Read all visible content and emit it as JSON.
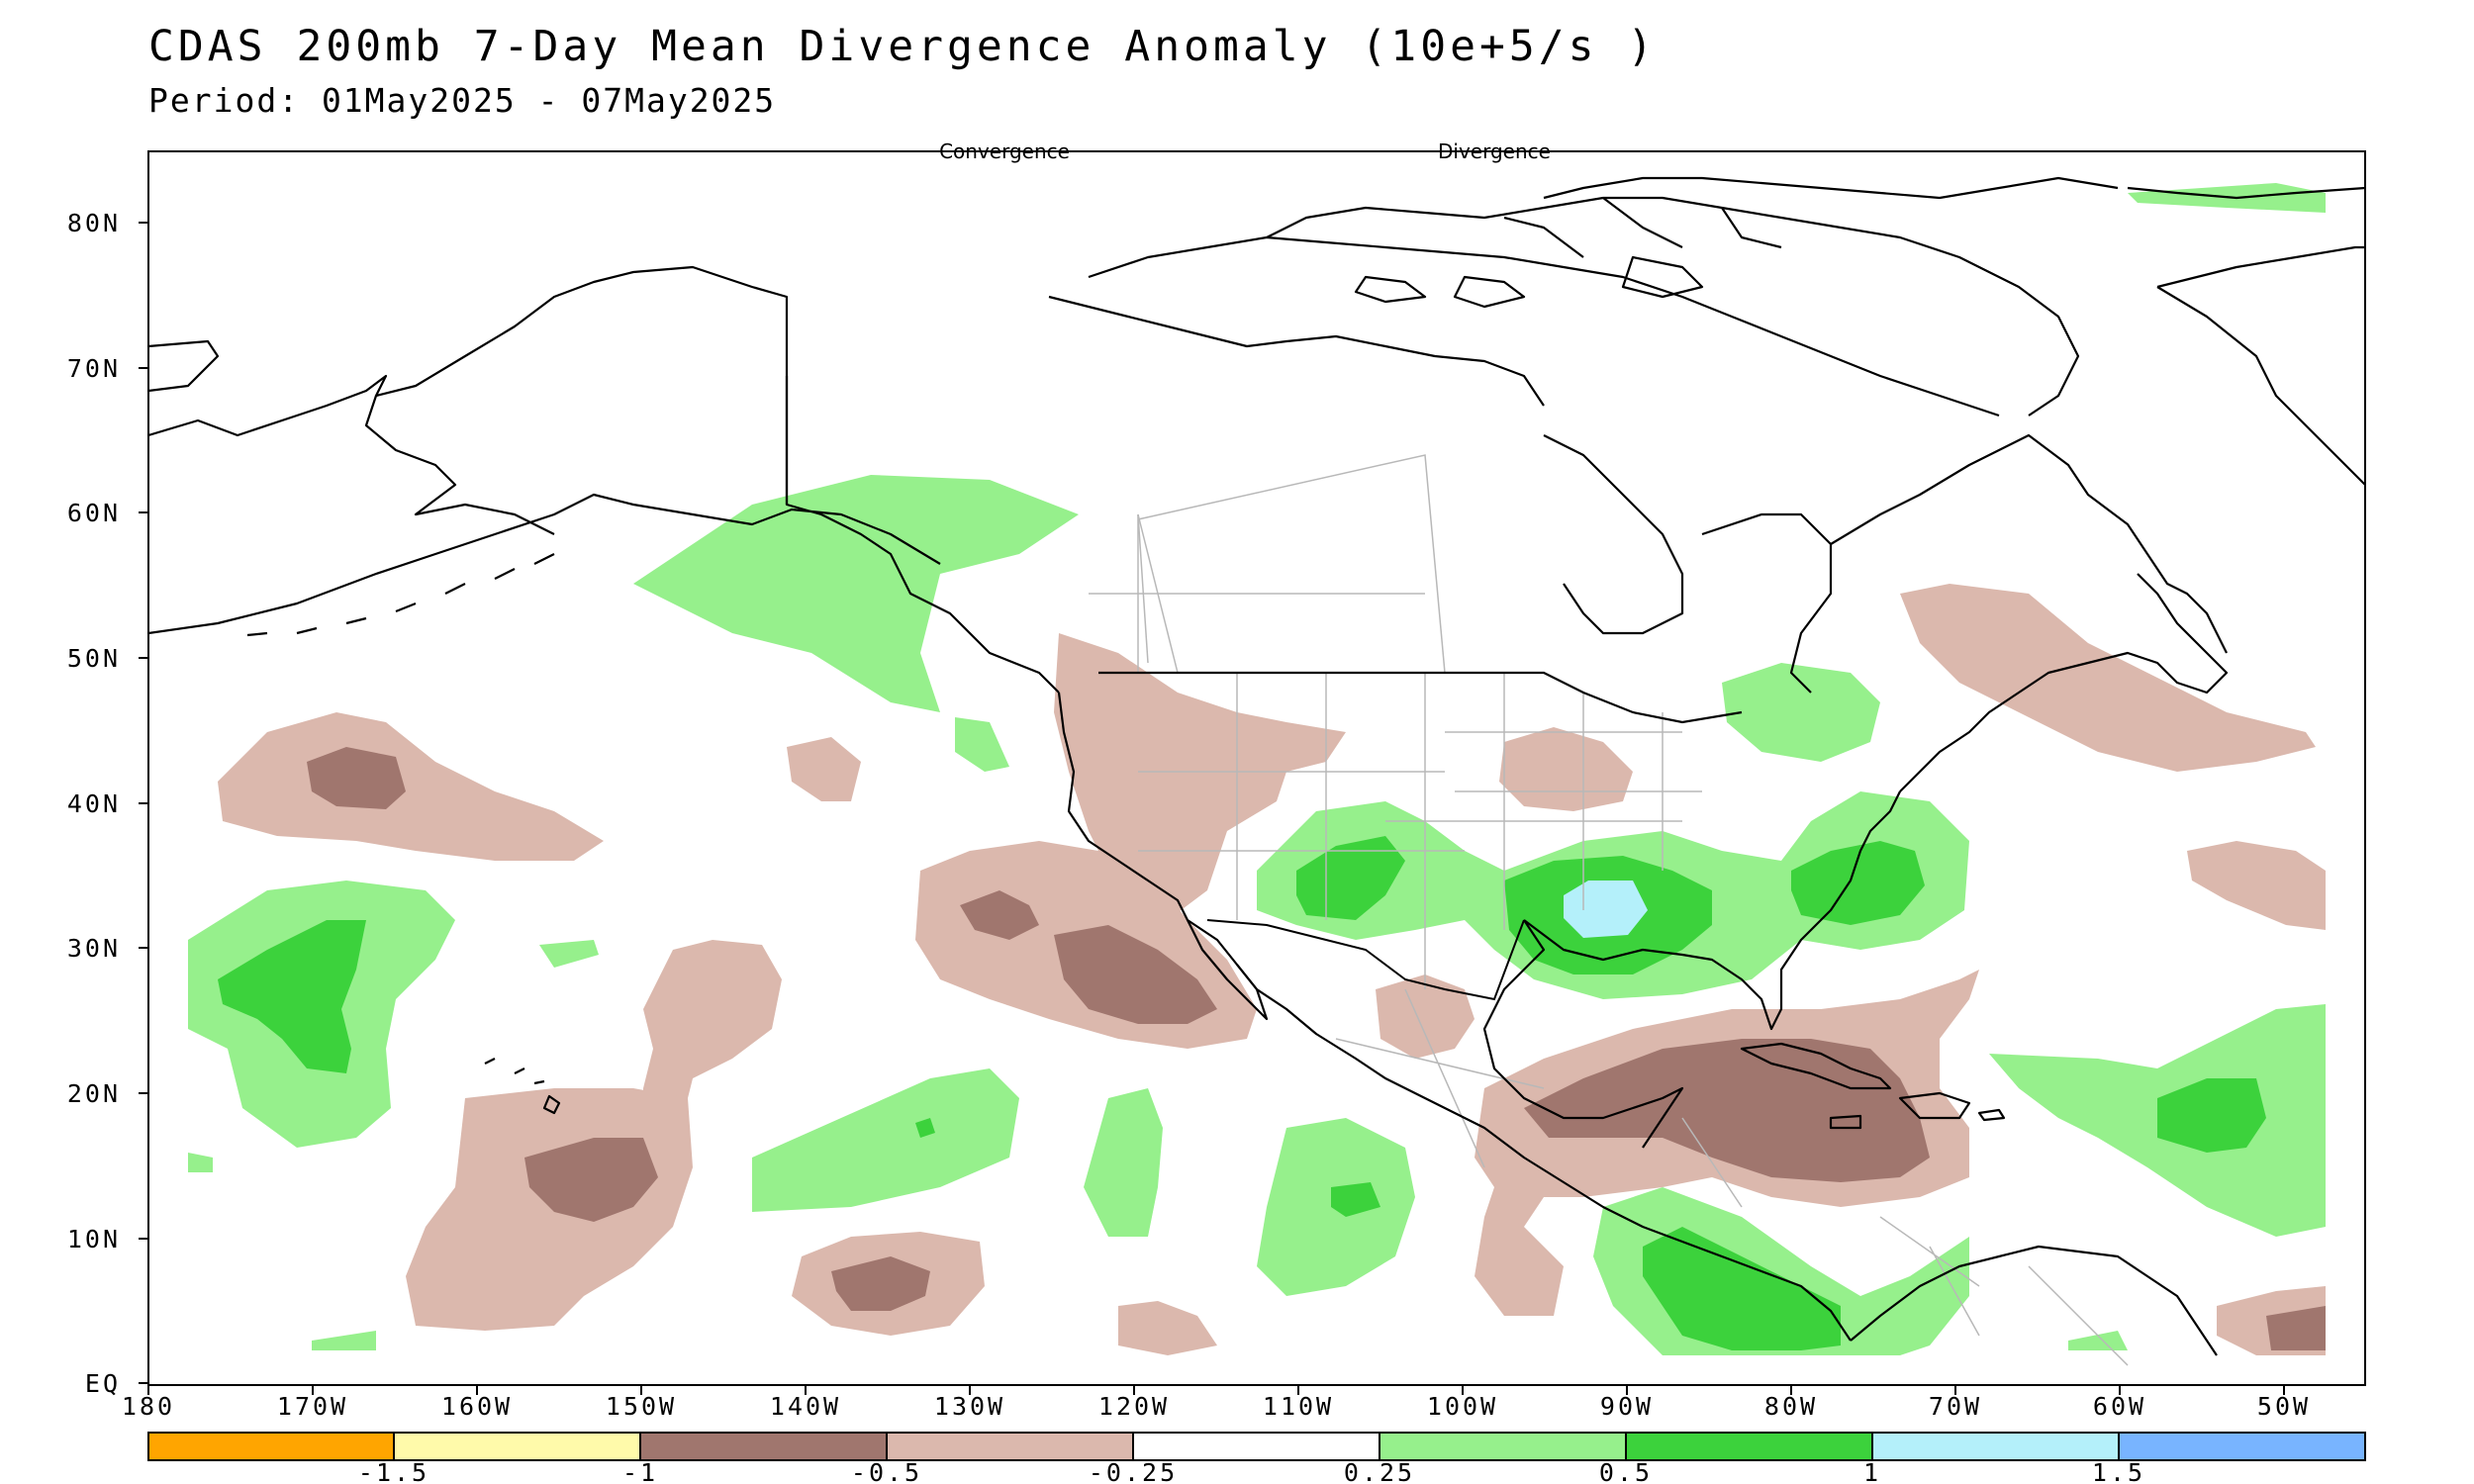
{
  "header": {
    "title": "CDAS 200mb 7-Day Mean Divergence Anomaly (10e+5/s )",
    "period": "Period: 01May2025 - 07May2025"
  },
  "map": {
    "label_convergence": "Convergence",
    "label_divergence": "Divergence",
    "lat_labels": [
      "80N",
      "70N",
      "60N",
      "50N",
      "40N",
      "30N",
      "20N",
      "10N",
      "EQ"
    ],
    "lon_labels": [
      "180",
      "170W",
      "160W",
      "150W",
      "140W",
      "130W",
      "120W",
      "110W",
      "100W",
      "90W",
      "80W",
      "70W",
      "60W",
      "50W"
    ],
    "extent": {
      "lon_min": -180,
      "lon_max": -45,
      "lat_min": 0,
      "lat_max": 85
    }
  },
  "colorbar": {
    "tick_labels": [
      "-1.5",
      "-1",
      "-0.5",
      "-0.25",
      "0.25",
      "0.5",
      "1",
      "1.5"
    ],
    "colors": [
      "#ffa500",
      "#fffaaa",
      "#a0766e",
      "#dbb8ad",
      "#ffffff",
      "#96f08c",
      "#3cd23c",
      "#b4f0fa",
      "#78b4ff"
    ]
  }
}
